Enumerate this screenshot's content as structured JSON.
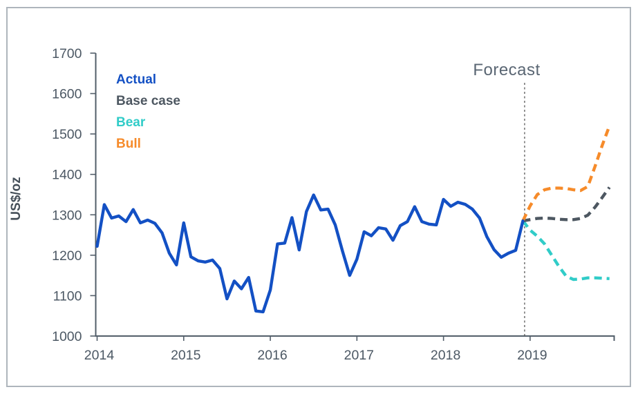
{
  "chart_data": {
    "type": "line",
    "title": "",
    "ylabel": "US$/oz",
    "xlabel": "",
    "annotation": "Forecast",
    "ylim": [
      1000,
      1700
    ],
    "yticks": [
      1000,
      1100,
      1200,
      1300,
      1400,
      1500,
      1600,
      1700
    ],
    "xticks": [
      {
        "label": "2014",
        "month": 0
      },
      {
        "label": "2015",
        "month": 12
      },
      {
        "label": "2016",
        "month": 24
      },
      {
        "label": "2017",
        "month": 36
      },
      {
        "label": "2018",
        "month": 48
      },
      {
        "label": "2019",
        "month": 60
      }
    ],
    "x_unit": "months from Jan 2014, monthly data Jan 2014 - Dec 2019",
    "forecast_start_month": 59,
    "legend_position": "top-left-inside",
    "grid": false,
    "axis_color": "#525e69",
    "tick_label_color": "#4c5864",
    "annotation_line_color": "#4a4a4a",
    "series": [
      {
        "name": "Actual",
        "color": "#1350c4",
        "style": "solid",
        "start_month": 0,
        "values": [
          1222,
          1325,
          1292,
          1297,
          1283,
          1313,
          1280,
          1287,
          1279,
          1255,
          1205,
          1176,
          1280,
          1196,
          1186,
          1183,
          1188,
          1167,
          1092,
          1136,
          1117,
          1145,
          1062,
          1060,
          1114,
          1228,
          1230,
          1293,
          1213,
          1308,
          1349,
          1312,
          1314,
          1275,
          1210,
          1150,
          1190,
          1258,
          1248,
          1268,
          1265,
          1237,
          1273,
          1283,
          1320,
          1283,
          1277,
          1275,
          1338,
          1321,
          1331,
          1326,
          1314,
          1292,
          1246,
          1214,
          1195,
          1205,
          1212,
          1285
        ]
      },
      {
        "name": "Base case",
        "color": "#4d5761",
        "style": "dashed",
        "start_month": 59,
        "values": [
          1285,
          1288,
          1291,
          1292,
          1291,
          1289,
          1288,
          1288,
          1291,
          1299,
          1319,
          1343,
          1368
        ]
      },
      {
        "name": "Bear",
        "color": "#31ccc8",
        "style": "dashed",
        "start_month": 59,
        "values": [
          1285,
          1262,
          1247,
          1228,
          1200,
          1172,
          1148,
          1140,
          1141,
          1144,
          1144,
          1143,
          1142
        ]
      },
      {
        "name": "Bull",
        "color": "#f68b2a",
        "style": "dashed",
        "start_month": 59,
        "values": [
          1285,
          1322,
          1350,
          1362,
          1366,
          1366,
          1365,
          1362,
          1360,
          1370,
          1420,
          1472,
          1520
        ]
      }
    ]
  }
}
